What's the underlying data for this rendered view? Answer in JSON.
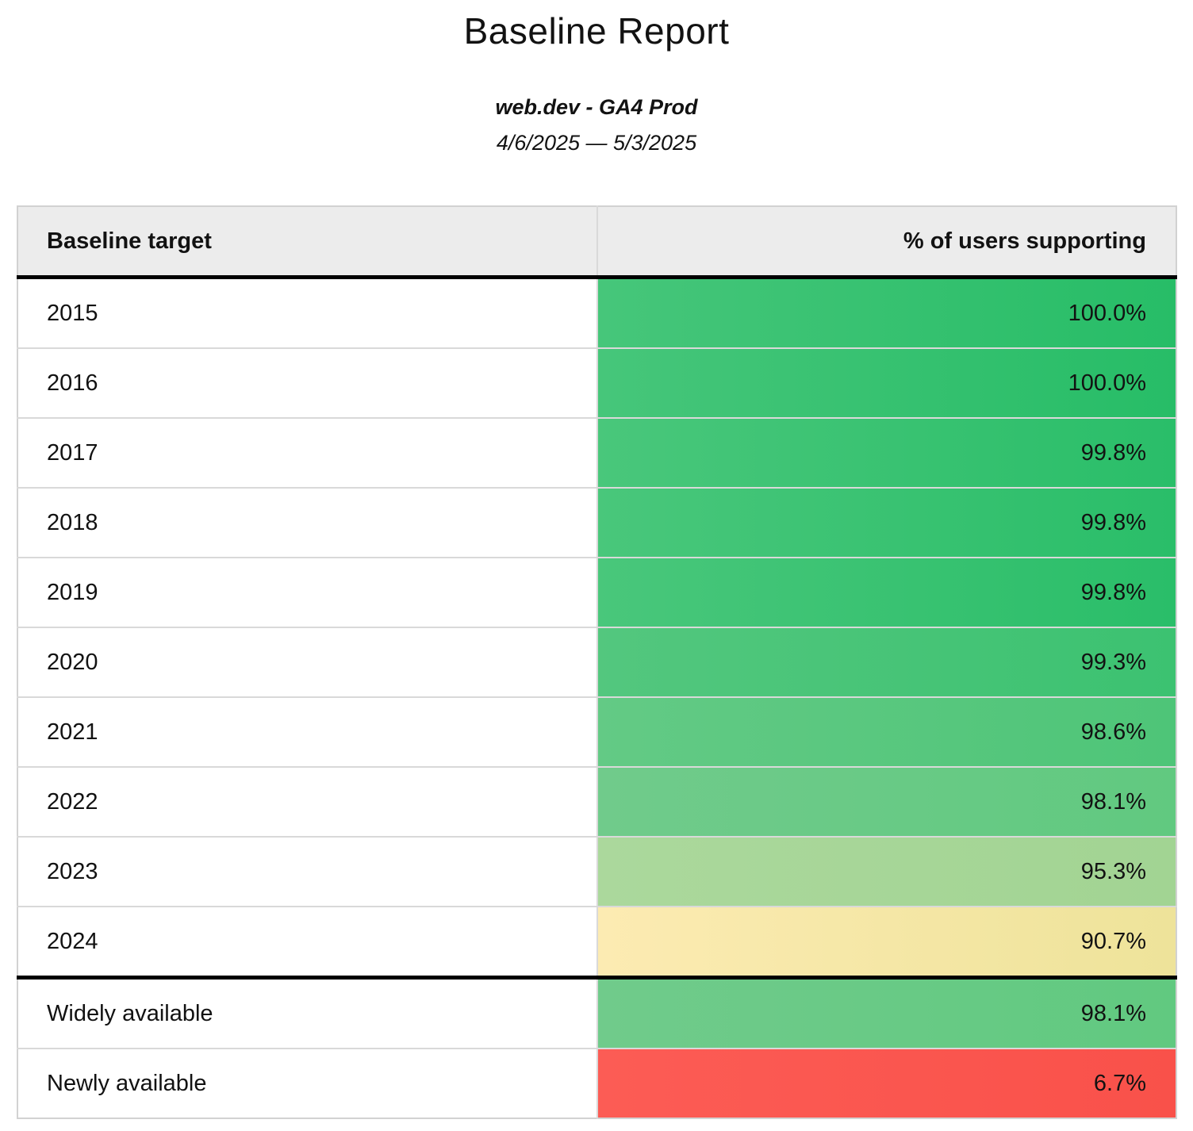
{
  "report": {
    "title": "Baseline Report",
    "subtitle": "web.dev - GA4 Prod",
    "date_range": "4/6/2025 — 5/3/2025"
  },
  "table": {
    "columns": [
      "Baseline target",
      "% of users supporting"
    ],
    "rows": [
      {
        "target": "2015",
        "value": "100.0%",
        "color_left": "#46c67a",
        "color_right": "#27bd67",
        "section_end": false
      },
      {
        "target": "2016",
        "value": "100.0%",
        "color_left": "#46c67a",
        "color_right": "#27bd67",
        "section_end": false
      },
      {
        "target": "2017",
        "value": "99.8%",
        "color_left": "#49c77b",
        "color_right": "#2abe69",
        "section_end": false
      },
      {
        "target": "2018",
        "value": "99.8%",
        "color_left": "#49c77b",
        "color_right": "#2abe69",
        "section_end": false
      },
      {
        "target": "2019",
        "value": "99.8%",
        "color_left": "#49c77b",
        "color_right": "#2abe69",
        "section_end": false
      },
      {
        "target": "2020",
        "value": "99.3%",
        "color_left": "#53c77e",
        "color_right": "#3cc271",
        "section_end": false
      },
      {
        "target": "2021",
        "value": "98.6%",
        "color_left": "#63ca85",
        "color_right": "#4ec578",
        "section_end": false
      },
      {
        "target": "2022",
        "value": "98.1%",
        "color_left": "#70cb8b",
        "color_right": "#61c980",
        "section_end": false
      },
      {
        "target": "2023",
        "value": "95.3%",
        "color_left": "#abd89c",
        "color_right": "#a2d493",
        "section_end": false
      },
      {
        "target": "2024",
        "value": "90.7%",
        "color_left": "#fcebb2",
        "color_right": "#eee39a",
        "section_end": true
      },
      {
        "target": "Widely available",
        "value": "98.1%",
        "color_left": "#70cb8b",
        "color_right": "#61c980",
        "section_end": false
      },
      {
        "target": "Newly available",
        "value": "6.7%",
        "color_left": "#fc5c55",
        "color_right": "#f9514a",
        "section_end": false
      }
    ]
  },
  "colors": {
    "header_bg": "#ececec",
    "row_border": "#d9d9d9",
    "outer_border": "#d2d2d2",
    "section_border": "#000000",
    "text": "#121212"
  },
  "chart_data": {
    "type": "table",
    "title": "Baseline Report",
    "subtitle": "web.dev - GA4 Prod",
    "date_range": "4/6/2025 — 5/3/2025",
    "columns": [
      "Baseline target",
      "% of users supporting"
    ],
    "categories": [
      "2015",
      "2016",
      "2017",
      "2018",
      "2019",
      "2020",
      "2021",
      "2022",
      "2023",
      "2024",
      "Widely available",
      "Newly available"
    ],
    "values": [
      100.0,
      100.0,
      99.8,
      99.8,
      99.8,
      99.3,
      98.6,
      98.1,
      95.3,
      90.7,
      98.1,
      6.7
    ],
    "value_unit": "%",
    "layout_hints": {
      "conditional_formatting": "green (high) to yellow to red (low) cell background gradient",
      "value_alignment": "right",
      "section_break_after": "2024"
    }
  }
}
